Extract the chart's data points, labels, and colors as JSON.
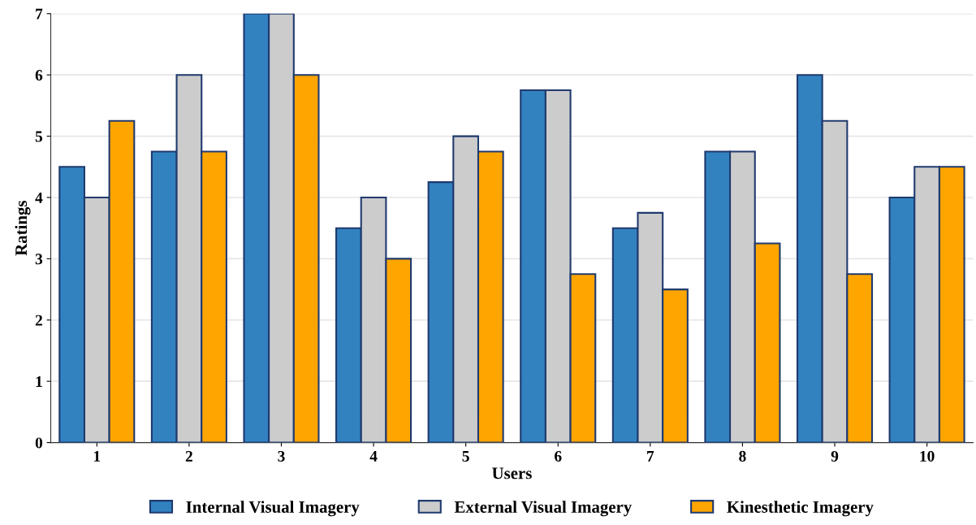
{
  "chart_data": {
    "type": "bar",
    "xlabel": "Users",
    "ylabel": "Ratings",
    "categories": [
      "1",
      "2",
      "3",
      "4",
      "5",
      "6",
      "7",
      "8",
      "9",
      "10"
    ],
    "series": [
      {
        "name": "Internal Visual Imagery",
        "color": "#3282c0",
        "values": [
          4.5,
          4.75,
          7,
          3.5,
          4.25,
          5.75,
          3.5,
          4.75,
          6,
          4
        ]
      },
      {
        "name": "External Visual Imagery",
        "color": "#cccccc",
        "values": [
          4,
          6,
          7,
          4,
          5,
          5.75,
          3.75,
          4.75,
          5.25,
          4.5
        ]
      },
      {
        "name": "Kinesthetic Imagery",
        "color": "#ffa500",
        "values": [
          5.25,
          4.75,
          6,
          3,
          4.75,
          2.75,
          2.5,
          3.25,
          2.75,
          4.5
        ]
      }
    ],
    "ylim": [
      0,
      7
    ],
    "yticks": [
      0,
      1,
      2,
      3,
      4,
      5,
      6,
      7
    ],
    "grid": "y",
    "legend": "bottom"
  }
}
